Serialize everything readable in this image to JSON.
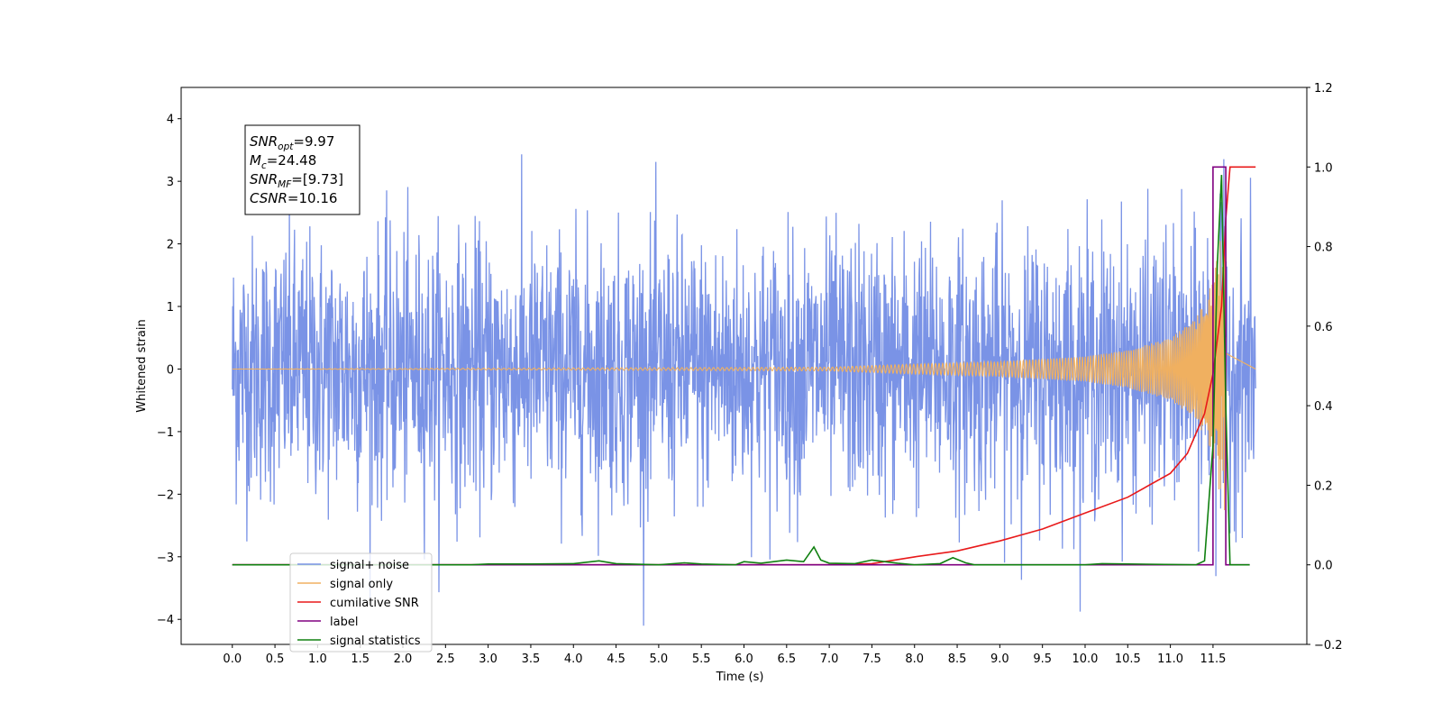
{
  "chart_data": {
    "type": "line",
    "xlabel": "Time (s)",
    "ylabel": "Whitened strain",
    "xlim": [
      -0.6,
      12.6
    ],
    "ylim": [
      -4.4,
      4.5
    ],
    "y2lim": [
      -0.2,
      1.2
    ],
    "x_ticks": [
      "0.0",
      "0.5",
      "1.0",
      "1.5",
      "2.0",
      "2.5",
      "3.0",
      "3.5",
      "4.0",
      "4.5",
      "5.0",
      "5.5",
      "6.0",
      "6.5",
      "7.0",
      "7.5",
      "8.0",
      "8.5",
      "9.0",
      "9.5",
      "10.0",
      "10.5",
      "11.0",
      "11.5"
    ],
    "y_ticks": [
      "−4",
      "−3",
      "−2",
      "−1",
      "0",
      "1",
      "2",
      "3",
      "4"
    ],
    "y2_ticks": [
      "−0.2",
      "0.0",
      "0.2",
      "0.4",
      "0.6",
      "0.8",
      "1.0",
      "1.2"
    ],
    "annotation": {
      "lines": [
        {
          "var": "SNR",
          "sub": "opt",
          "value": "=9.97"
        },
        {
          "var": "M",
          "sub": "c",
          "value": "=24.48"
        },
        {
          "var": "SNR",
          "sub": "MF",
          "value": "=[9.73]"
        },
        {
          "var": "CSNR",
          "sub": "",
          "value": "=10.16"
        }
      ]
    },
    "legend": {
      "placement": "lower-left",
      "entries": [
        "signal+ noise",
        "signal only",
        "cumilative SNR",
        "label",
        "signal statistics"
      ]
    },
    "series": [
      {
        "name": "signal+ noise",
        "axis": "left",
        "color": "#7a93e6",
        "kind": "noise",
        "x_start": 0.0,
        "x_end": 12.0,
        "noise_std": 1.05,
        "noise_peak": 4.1
      },
      {
        "name": "signal only",
        "axis": "left",
        "color": "#f0b060",
        "kind": "chirp",
        "x_start": 0.0,
        "x_end": 11.65,
        "merger_time": 11.65,
        "envelope": [
          [
            0.0,
            0.0
          ],
          [
            7.0,
            0.03
          ],
          [
            8.0,
            0.08
          ],
          [
            9.0,
            0.12
          ],
          [
            10.0,
            0.2
          ],
          [
            10.5,
            0.3
          ],
          [
            11.0,
            0.5
          ],
          [
            11.3,
            0.8
          ],
          [
            11.5,
            1.4
          ],
          [
            11.6,
            2.2
          ],
          [
            11.65,
            2.5
          ]
        ]
      },
      {
        "name": "cumilative SNR",
        "axis": "right",
        "color": "#e8191a",
        "x": [
          0.0,
          7.0,
          7.5,
          8.0,
          8.5,
          9.0,
          9.5,
          10.0,
          10.5,
          11.0,
          11.2,
          11.4,
          11.5,
          11.6,
          11.65,
          11.7,
          12.0
        ],
        "y": [
          0.0,
          0.0,
          0.003,
          0.02,
          0.035,
          0.06,
          0.09,
          0.13,
          0.17,
          0.23,
          0.28,
          0.38,
          0.48,
          0.65,
          0.87,
          1.0,
          1.0
        ]
      },
      {
        "name": "label",
        "axis": "right",
        "color": "#800080",
        "x": [
          0.0,
          11.5,
          11.5,
          11.65,
          11.65,
          11.93
        ],
        "y": [
          0.0,
          0.0,
          1.0,
          1.0,
          0.0,
          0.0
        ]
      },
      {
        "name": "signal statistics",
        "axis": "right",
        "color": "#108010",
        "x": [
          0.0,
          2.8,
          3.0,
          3.5,
          4.0,
          4.3,
          4.5,
          5.0,
          5.3,
          5.5,
          5.9,
          6.0,
          6.2,
          6.5,
          6.7,
          6.82,
          6.9,
          7.0,
          7.3,
          7.5,
          7.8,
          8.0,
          8.3,
          8.45,
          8.6,
          8.7,
          9.0,
          10.0,
          10.2,
          11.3,
          11.4,
          11.5,
          11.55,
          11.6,
          11.65,
          11.7,
          11.93
        ],
        "y": [
          0.0,
          0.0,
          0.002,
          0.002,
          0.003,
          0.01,
          0.003,
          0.0,
          0.005,
          0.002,
          0.0,
          0.008,
          0.004,
          0.012,
          0.008,
          0.045,
          0.012,
          0.004,
          0.003,
          0.012,
          0.004,
          0.0,
          0.003,
          0.018,
          0.005,
          0.0,
          0.0,
          0.0,
          0.003,
          0.0,
          0.01,
          0.3,
          0.75,
          0.98,
          0.4,
          0.0,
          0.0
        ]
      }
    ]
  }
}
